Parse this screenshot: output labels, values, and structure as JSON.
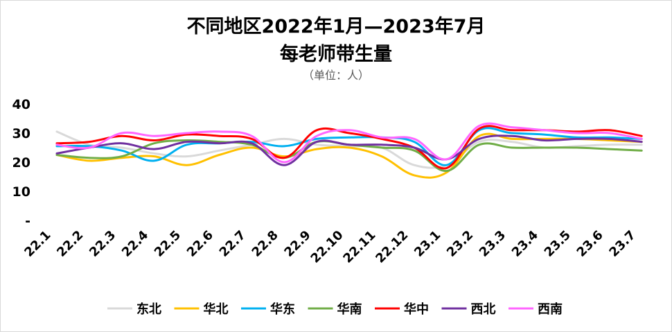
{
  "chart_data": {
    "type": "line",
    "title": "不同地区2022年1月—2023年7月",
    "title_line2": "每老师带生量",
    "subtitle": "（单位：人）",
    "categories": [
      "22.1",
      "22.2",
      "22.3",
      "22.4",
      "22.5",
      "22.6",
      "22.7",
      "22.8",
      "22.9",
      "22.10",
      "22.11",
      "22.12",
      "23.1",
      "23.2",
      "23.3",
      "23.4",
      "23.5",
      "23.6",
      "23.7"
    ],
    "y_ticks": [
      "-",
      "10",
      "20",
      "30",
      "40"
    ],
    "ylim": [
      0,
      40
    ],
    "grid": false,
    "legend_position": "bottom",
    "series": [
      {
        "name": "东北",
        "color": "#d9d9d9",
        "values": [
          30.5,
          26,
          25,
          23,
          22,
          24,
          26,
          28,
          26,
          25.5,
          25,
          19,
          19,
          27,
          27,
          25,
          25.5,
          26,
          26
        ]
      },
      {
        "name": "华北",
        "color": "#ffc000",
        "values": [
          22.5,
          20.5,
          21.5,
          22,
          19,
          22.5,
          25,
          22,
          24.5,
          25,
          22,
          15.5,
          16.5,
          29,
          28,
          28,
          28,
          27.5,
          27
        ]
      },
      {
        "name": "华东",
        "color": "#00b0f0",
        "values": [
          25.5,
          25.5,
          24,
          20.5,
          26,
          26.5,
          27,
          25.5,
          28,
          28.5,
          28.5,
          27,
          19,
          31,
          30,
          29.5,
          28.5,
          28.5,
          28
        ]
      },
      {
        "name": "华南",
        "color": "#70ad47",
        "values": [
          22.5,
          21.5,
          22,
          26.5,
          27.5,
          27,
          26,
          21.5,
          27,
          26,
          25,
          24,
          17,
          26,
          25,
          25,
          25,
          24.5,
          24
        ]
      },
      {
        "name": "华中",
        "color": "#ff0000",
        "values": [
          26.5,
          27,
          29,
          27.5,
          29.5,
          29,
          28,
          21.5,
          31,
          30,
          28,
          25,
          18,
          31.5,
          31,
          31,
          30.5,
          31,
          29
        ]
      },
      {
        "name": "西北",
        "color": "#7030a0",
        "values": [
          23,
          25,
          26.5,
          24.5,
          27,
          26.5,
          26.5,
          19,
          27,
          26,
          26,
          25,
          21,
          28,
          29,
          27.5,
          28,
          28,
          27
        ]
      },
      {
        "name": "西南",
        "color": "#ff66ff",
        "values": [
          26,
          25,
          30,
          29,
          30,
          30.5,
          29,
          20,
          29,
          31,
          28.5,
          28,
          21,
          32.5,
          32,
          31,
          30,
          30,
          28
        ]
      }
    ]
  }
}
